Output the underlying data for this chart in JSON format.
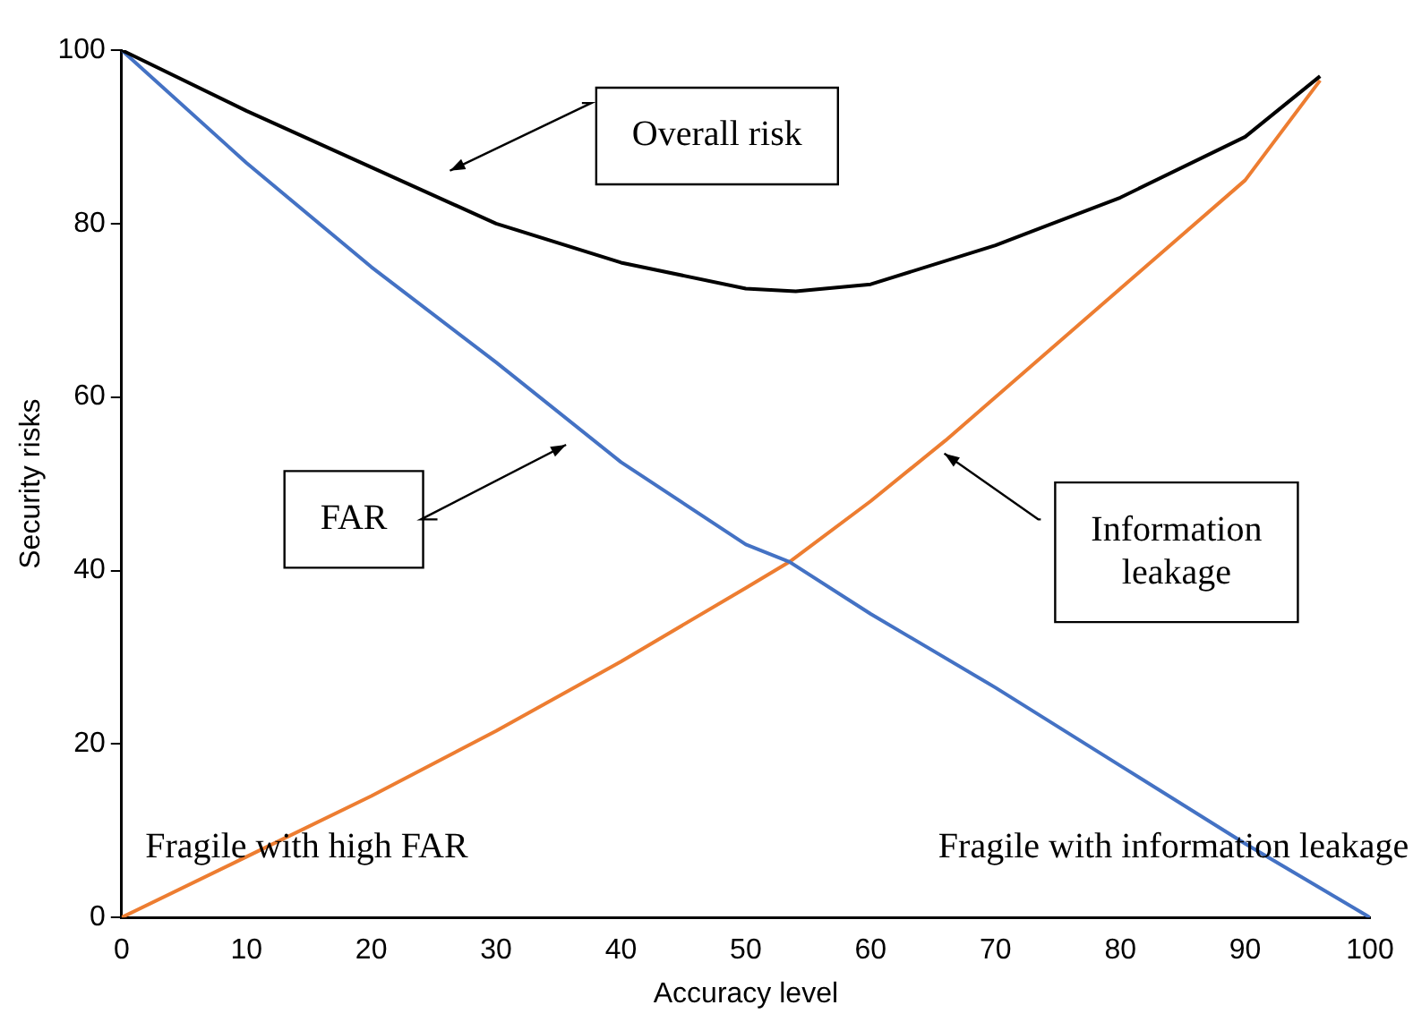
{
  "chart_data": {
    "type": "line",
    "xlabel": "Accuracy level",
    "ylabel": "Security risks",
    "xlim": [
      0,
      100
    ],
    "xticks": [
      0,
      10,
      20,
      30,
      40,
      50,
      60,
      70,
      80,
      90,
      100
    ],
    "ylim": [
      0,
      100
    ],
    "yticks": [
      0,
      20,
      40,
      60,
      80,
      100
    ],
    "grid": false,
    "legend": false,
    "marker": "none",
    "line_style": "solid",
    "series": [
      {
        "color": "#000000",
        "x": [
          0,
          10,
          20,
          30,
          40,
          50,
          54,
          60,
          70,
          80,
          90,
          96
        ],
        "values": [
          100,
          93,
          86.5,
          80,
          75.5,
          72.5,
          72.2,
          73,
          77.5,
          83,
          90,
          97
        ]
      },
      {
        "color": "#4472c4",
        "x": [
          0,
          10,
          20,
          30,
          40,
          50,
          53.5,
          60,
          70,
          80,
          90,
          100
        ],
        "values": [
          100,
          87,
          75,
          64,
          52.5,
          43,
          41,
          35,
          26.5,
          17.5,
          8.5,
          0
        ]
      },
      {
        "color": "#ed7d31",
        "x": [
          0,
          10,
          20,
          30,
          40,
          50,
          53.5,
          60,
          66,
          70,
          80,
          90,
          96
        ],
        "values": [
          0,
          7,
          14,
          21.5,
          29.5,
          38,
          41,
          48,
          55,
          60,
          72.5,
          85,
          96.5
        ]
      }
    ],
    "annotations": [
      "Overall risk",
      "FAR",
      "Information leakage",
      "Fragile with high FAR",
      "Fragile with information leakage"
    ]
  }
}
